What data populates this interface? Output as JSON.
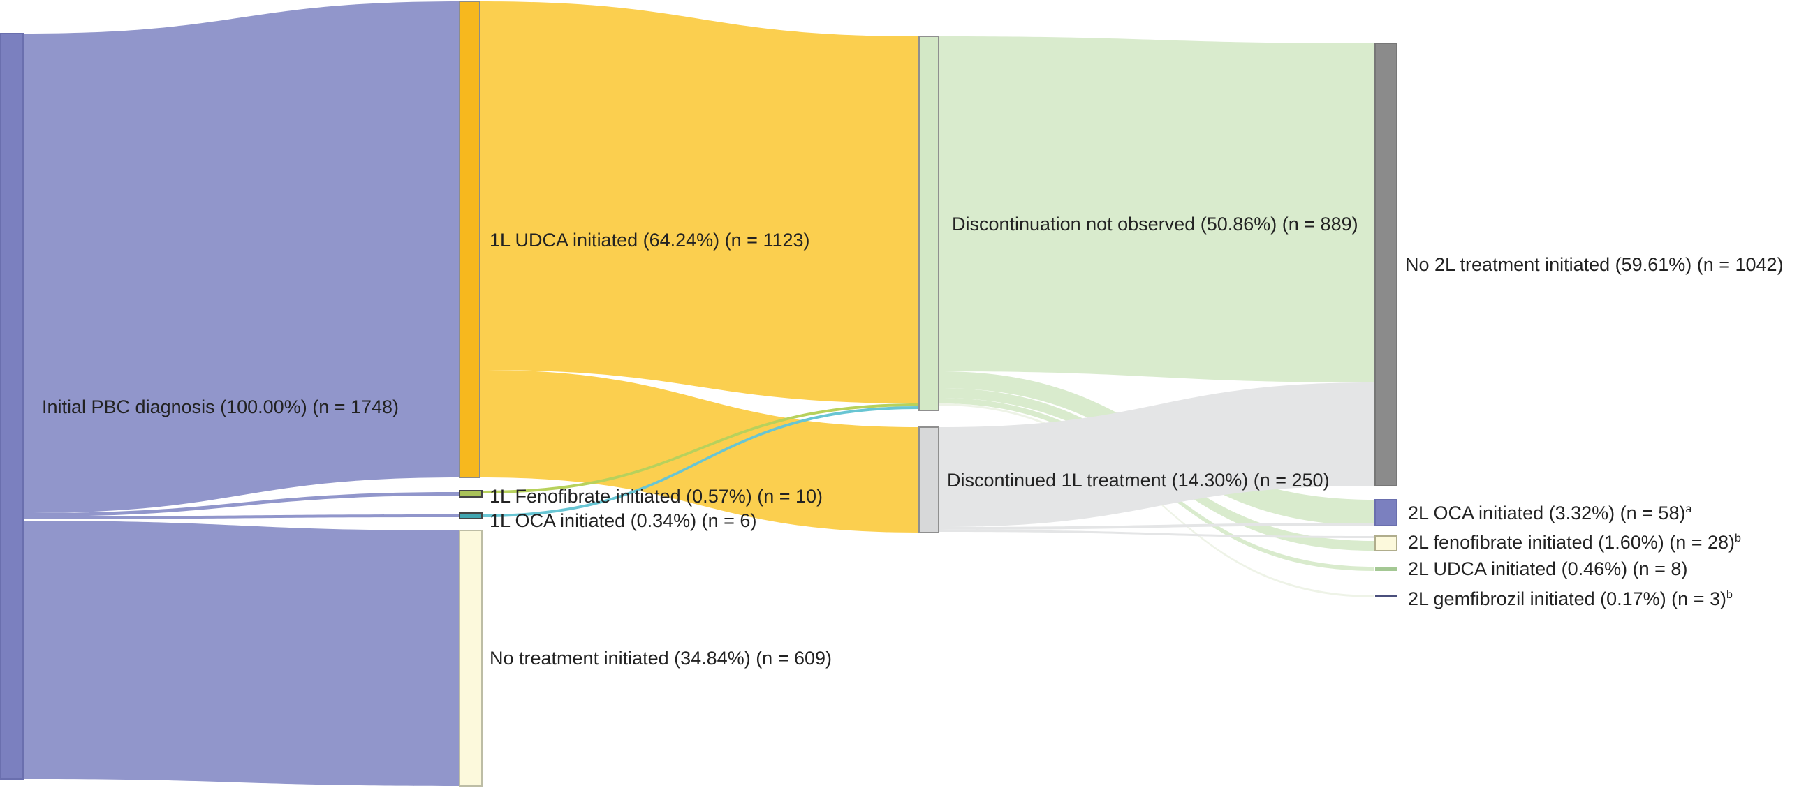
{
  "colors": {
    "initial": "#7b80bf",
    "initial_flow": "#9196cb",
    "udca": "#f7b81e",
    "udca_flow": "#fbcf4f",
    "fenofibrate": "#a9c259",
    "oca1": "#41a5b0",
    "oca_flow": "#68c5d3",
    "fenofibrate_flow": "#b7d15c",
    "no_treatment": "#fcf9dc",
    "not_observed": "#d3e8c6",
    "not_observed_flow": "#d9ebcd",
    "discontinued": "#d7d8d9",
    "discontinued_flow": "#e4e5e6",
    "no_2l": "#8b8b8b",
    "oca2": "#7b80bf",
    "feno2": "#fcf9dc",
    "udca2": "#a4c894",
    "gemfibrozil": "#4a4f7c"
  },
  "nodes": [
    {
      "id": "initial",
      "label": "Initial PBC diagnosis (100.00%) (n = 1748)",
      "sup": ""
    },
    {
      "id": "udca1",
      "label": "1L UDCA initiated (64.24%) (n = 1123)",
      "sup": ""
    },
    {
      "id": "feno1",
      "label": "1L Fenofibrate initiated (0.57%) (n = 10)",
      "sup": ""
    },
    {
      "id": "oca1",
      "label": "1L OCA initiated (0.34%) (n = 6)",
      "sup": ""
    },
    {
      "id": "none",
      "label": "No treatment initiated (34.84%) (n = 609)",
      "sup": ""
    },
    {
      "id": "notobs",
      "label": "Discontinuation not observed (50.86%) (n = 889)",
      "sup": ""
    },
    {
      "id": "disc",
      "label": "Discontinued 1L treatment (14.30%) (n = 250)",
      "sup": ""
    },
    {
      "id": "no2l",
      "label": "No 2L treatment initiated (59.61%) (n = 1042)",
      "sup": ""
    },
    {
      "id": "oca2",
      "label": "2L OCA initiated (3.32%) (n = 58)",
      "sup": "a"
    },
    {
      "id": "feno2",
      "label": "2L fenofibrate initiated (1.60%) (n = 28)",
      "sup": "b"
    },
    {
      "id": "udca2",
      "label": "2L UDCA initiated (0.46%) (n = 8)",
      "sup": ""
    },
    {
      "id": "gem2",
      "label": "2L gemfibrozil initiated (0.17%) (n = 3)",
      "sup": "b"
    }
  ]
}
